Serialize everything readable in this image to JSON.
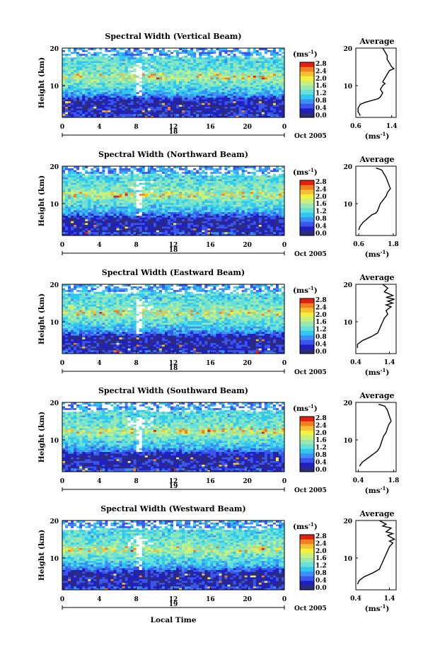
{
  "figure": {
    "xlabel": "Local Time",
    "month_label": "Oct 2005",
    "time_ticks": [
      "0",
      "4",
      "8",
      "12",
      "16",
      "20",
      "0"
    ],
    "height_ticks": [
      "20",
      "10"
    ],
    "ylabel": "Height (km)",
    "colorbar_unit": "(ms",
    "colorbar_unit_exp": "-1",
    "colorbar_unit_close": ")",
    "colorbar_ticks": [
      "2.8",
      "2.4",
      "2.0",
      "1.6",
      "1.2",
      "0.8",
      "0.4",
      "0.0"
    ],
    "colorscale": [
      "#2c2c7a",
      "#2020c0",
      "#3a55f0",
      "#3d8ef5",
      "#2fc8f0",
      "#66e0d8",
      "#9ae8b0",
      "#c8f07c",
      "#f4f040",
      "#f8c030",
      "#f08020",
      "#e02010"
    ],
    "average_title": "Average"
  },
  "chart_data": [
    {
      "type": "heatmap",
      "title": "Spectral Width (Vertical Beam)",
      "x_label": "Local Time",
      "y_label": "Height (km)",
      "x_range": [
        0,
        24
      ],
      "y_range": [
        1.5,
        20
      ],
      "date_label": "18",
      "colorbar": {
        "unit": "ms-1",
        "range": [
          0,
          3.0
        ]
      },
      "profile": {
        "title": "Average",
        "x_ticks": [
          "0.6",
          "1.4"
        ],
        "x_range": [
          0.6,
          1.5
        ],
        "y_ticks": [
          "20",
          "10"
        ],
        "xlabel": "(ms-1)",
        "points": [
          [
            1.2,
            20
          ],
          [
            1.25,
            19
          ],
          [
            1.3,
            18
          ],
          [
            1.3,
            17
          ],
          [
            1.35,
            16
          ],
          [
            1.4,
            15
          ],
          [
            1.45,
            14.5
          ],
          [
            1.35,
            14
          ],
          [
            1.3,
            13
          ],
          [
            1.25,
            12
          ],
          [
            1.2,
            11
          ],
          [
            1.25,
            10.5
          ],
          [
            1.2,
            10
          ],
          [
            1.15,
            9
          ],
          [
            1.2,
            8
          ],
          [
            1.15,
            7
          ],
          [
            1.1,
            6.5
          ],
          [
            0.95,
            6
          ],
          [
            0.8,
            5.5
          ],
          [
            0.7,
            5
          ],
          [
            0.65,
            4
          ],
          [
            0.65,
            3
          ],
          [
            0.7,
            2
          ]
        ]
      }
    },
    {
      "type": "heatmap",
      "title": "Spectral Width (Northward Beam)",
      "x_label": "Local Time",
      "y_label": "Height (km)",
      "x_range": [
        0,
        24
      ],
      "y_range": [
        1.5,
        20
      ],
      "date_label": "18",
      "colorbar": {
        "unit": "ms-1",
        "range": [
          0,
          3.0
        ]
      },
      "profile": {
        "title": "Average",
        "x_ticks": [
          "0.6",
          "1.8"
        ],
        "x_range": [
          0.5,
          1.9
        ],
        "y_ticks": [
          "20",
          "10"
        ],
        "xlabel": "(ms-1)",
        "points": [
          [
            1.2,
            19.5
          ],
          [
            1.4,
            19
          ],
          [
            1.55,
            17
          ],
          [
            1.6,
            16
          ],
          [
            1.65,
            15
          ],
          [
            1.7,
            14
          ],
          [
            1.6,
            13
          ],
          [
            1.55,
            12
          ],
          [
            1.45,
            11
          ],
          [
            1.35,
            10
          ],
          [
            1.3,
            9
          ],
          [
            1.25,
            8
          ],
          [
            1.2,
            7.5
          ],
          [
            1.05,
            7
          ],
          [
            0.9,
            6
          ],
          [
            0.75,
            5
          ],
          [
            0.65,
            4
          ],
          [
            0.6,
            3
          ]
        ]
      }
    },
    {
      "type": "heatmap",
      "title": "Spectral Width (Eastward Beam)",
      "x_label": "Local Time",
      "y_label": "Height (km)",
      "x_range": [
        0,
        24
      ],
      "y_range": [
        1.5,
        20
      ],
      "date_label": "18",
      "colorbar": {
        "unit": "ms-1",
        "range": [
          0,
          3.0
        ]
      },
      "profile": {
        "title": "Average",
        "x_ticks": [
          "0.4",
          "1.4"
        ],
        "x_range": [
          0.4,
          1.6
        ],
        "y_ticks": [
          "20",
          "10"
        ],
        "xlabel": "(ms-1)",
        "points": [
          [
            1.2,
            20
          ],
          [
            1.35,
            19
          ],
          [
            1.25,
            18
          ],
          [
            1.5,
            17
          ],
          [
            1.3,
            16.5
          ],
          [
            1.55,
            16
          ],
          [
            1.35,
            15.5
          ],
          [
            1.5,
            15
          ],
          [
            1.3,
            14.5
          ],
          [
            1.45,
            14
          ],
          [
            1.3,
            13
          ],
          [
            1.35,
            12
          ],
          [
            1.25,
            11
          ],
          [
            1.2,
            10
          ],
          [
            1.15,
            9
          ],
          [
            1.1,
            8
          ],
          [
            1.05,
            7
          ],
          [
            0.85,
            6
          ],
          [
            0.6,
            5
          ],
          [
            0.45,
            4
          ],
          [
            0.45,
            3
          ]
        ]
      }
    },
    {
      "type": "heatmap",
      "title": "Spectral Width (Southward Beam)",
      "x_label": "Local Time",
      "y_label": "Height (km)",
      "x_range": [
        0,
        24
      ],
      "y_range": [
        1.5,
        20
      ],
      "date_label": "19",
      "colorbar": {
        "unit": "ms-1",
        "range": [
          0,
          3.0
        ]
      },
      "profile": {
        "title": "Average",
        "x_ticks": [
          "0.4",
          "1.8"
        ],
        "x_range": [
          0.3,
          1.9
        ],
        "y_ticks": [
          "20",
          "10"
        ],
        "xlabel": "(ms-1)",
        "points": [
          [
            1.2,
            19.5
          ],
          [
            1.45,
            19
          ],
          [
            1.55,
            18
          ],
          [
            1.6,
            17
          ],
          [
            1.65,
            16
          ],
          [
            1.7,
            15
          ],
          [
            1.6,
            14
          ],
          [
            1.55,
            13
          ],
          [
            1.5,
            12
          ],
          [
            1.4,
            11
          ],
          [
            1.35,
            10
          ],
          [
            1.3,
            9
          ],
          [
            1.25,
            8
          ],
          [
            1.15,
            7
          ],
          [
            0.95,
            6
          ],
          [
            0.75,
            5
          ],
          [
            0.55,
            4
          ],
          [
            0.45,
            3
          ]
        ]
      }
    },
    {
      "type": "heatmap",
      "title": "Spectral Width (Westward Beam)",
      "x_label": "Local Time",
      "y_label": "Height (km)",
      "x_range": [
        0,
        24
      ],
      "y_range": [
        1.5,
        20
      ],
      "date_label": "19",
      "colorbar": {
        "unit": "ms-1",
        "range": [
          0,
          3.0
        ]
      },
      "profile": {
        "title": "Average",
        "x_ticks": [
          "0.4",
          "1.4"
        ],
        "x_range": [
          0.4,
          1.6
        ],
        "y_ticks": [
          "20",
          "10"
        ],
        "xlabel": "(ms-1)",
        "points": [
          [
            1.1,
            20
          ],
          [
            1.3,
            19
          ],
          [
            1.2,
            18.5
          ],
          [
            1.45,
            18
          ],
          [
            1.3,
            17
          ],
          [
            1.5,
            16.5
          ],
          [
            1.35,
            16
          ],
          [
            1.55,
            15
          ],
          [
            1.4,
            14.5
          ],
          [
            1.5,
            14
          ],
          [
            1.4,
            13
          ],
          [
            1.35,
            12
          ],
          [
            1.3,
            11
          ],
          [
            1.25,
            10
          ],
          [
            1.2,
            9
          ],
          [
            1.15,
            8
          ],
          [
            1.1,
            7
          ],
          [
            0.9,
            6
          ],
          [
            0.65,
            5
          ],
          [
            0.5,
            4
          ],
          [
            0.45,
            3
          ]
        ]
      }
    }
  ]
}
